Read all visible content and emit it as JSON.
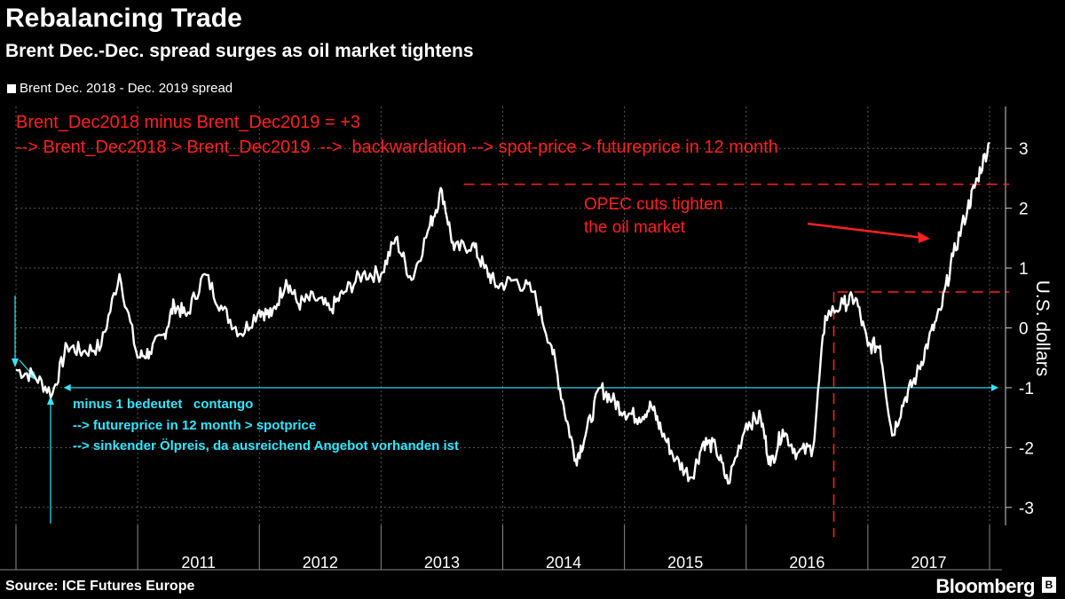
{
  "title": "Rebalancing Trade",
  "subtitle": "Brent Dec.-Dec. spread surges as oil market tightens",
  "source": "Source: ICE Futures Europe",
  "brand": "Bloomberg",
  "colors": {
    "background": "#000000",
    "series": "#ffffff",
    "annotation_red": "#ff2020",
    "annotation_cyan": "#33e6ff"
  },
  "chart_data": {
    "type": "line",
    "ylabel": "U.S. dollars",
    "ylim": [
      -3.3,
      3.7
    ],
    "yticks": [
      "3",
      "2",
      "1",
      "0",
      "-1",
      "-2",
      "-3"
    ],
    "xticks": [
      "2011",
      "2012",
      "2013",
      "2014",
      "2015",
      "2016",
      "2017"
    ],
    "grid": true,
    "series": [
      {
        "name": "Brent Dec. 2018 - Dec. 2019 spread",
        "x": [
          2010.0,
          2010.15,
          2010.3,
          2010.42,
          2010.55,
          2010.7,
          2010.85,
          2011.0,
          2011.1,
          2011.22,
          2011.3,
          2011.4,
          2011.55,
          2011.7,
          2011.85,
          2012.0,
          2012.1,
          2012.22,
          2012.32,
          2012.45,
          2012.58,
          2012.7,
          2012.85,
          2013.0,
          2013.12,
          2013.25,
          2013.4,
          2013.5,
          2013.6,
          2013.75,
          2013.85,
          2013.95,
          2014.1,
          2014.25,
          2014.4,
          2014.5,
          2014.6,
          2014.68,
          2014.8,
          2014.9,
          2015.0,
          2015.12,
          2015.22,
          2015.3,
          2015.42,
          2015.55,
          2015.65,
          2015.75,
          2015.85,
          2016.0,
          2016.12,
          2016.2,
          2016.3,
          2016.42,
          2016.55,
          2016.65,
          2016.8,
          2016.9,
          2017.0,
          2017.1,
          2017.2,
          2017.3,
          2017.4,
          2017.5,
          2017.6,
          2017.7,
          2017.82,
          2017.9,
          2018.0
        ],
        "y": [
          -0.7,
          -0.8,
          -1.1,
          -0.3,
          -0.4,
          -0.3,
          0.9,
          -0.5,
          -0.4,
          -0.1,
          0.4,
          0.2,
          0.9,
          0.3,
          -0.1,
          0.3,
          0.2,
          0.8,
          0.4,
          0.5,
          0.3,
          0.6,
          0.9,
          0.9,
          1.5,
          0.8,
          1.7,
          2.3,
          1.3,
          1.4,
          1.0,
          0.7,
          0.8,
          0.6,
          -0.3,
          -1.3,
          -2.2,
          -1.8,
          -1.0,
          -1.2,
          -1.4,
          -1.5,
          -1.3,
          -1.7,
          -2.2,
          -2.5,
          -1.9,
          -2.0,
          -2.6,
          -1.6,
          -1.5,
          -2.3,
          -1.7,
          -2.1,
          -2.0,
          0.2,
          0.4,
          0.5,
          -0.3,
          -0.3,
          -1.8,
          -1.2,
          -0.8,
          -0.2,
          0.3,
          1.2,
          2.0,
          2.5,
          3.1
        ]
      }
    ],
    "annotations": {
      "red_line1": "Brent_Dec2018 minus Brent_Dec2019 = +3",
      "red_line2": "--> Brent_Dec2018 > Brent_Dec2019  -->  backwardation --> spot-price > futureprice in 12 month",
      "opec1": "OPEC cuts tighten",
      "opec2": "the oil market",
      "cyan1": "minus 1 bedeutet   contango",
      "cyan2": "--> futureprice in 12 month > spotprice",
      "cyan3": "--> sinkender Ölpreis, da ausreichend Angebot vorhanden ist"
    }
  }
}
